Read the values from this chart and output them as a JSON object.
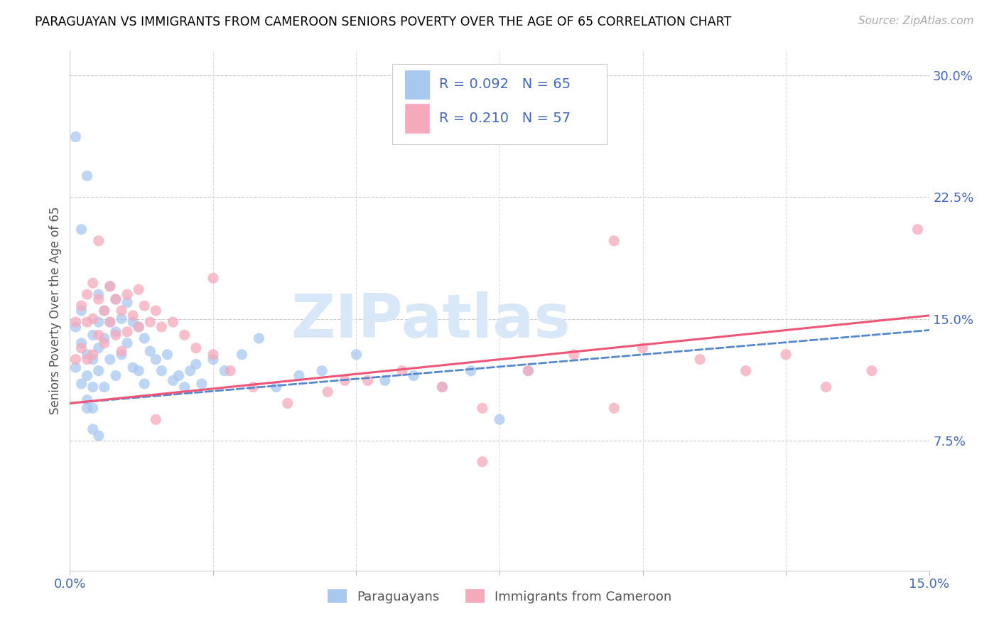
{
  "title": "PARAGUAYAN VS IMMIGRANTS FROM CAMEROON SENIORS POVERTY OVER THE AGE OF 65 CORRELATION CHART",
  "source": "Source: ZipAtlas.com",
  "ylabel": "Seniors Poverty Over the Age of 65",
  "right_yticks": [
    "30.0%",
    "22.5%",
    "15.0%",
    "7.5%"
  ],
  "right_ytick_vals": [
    0.3,
    0.225,
    0.15,
    0.075
  ],
  "xlim": [
    0.0,
    0.15
  ],
  "ylim": [
    -0.005,
    0.315
  ],
  "paraguayan_color": "#A8C8F0",
  "cameroon_color": "#F5AABB",
  "paraguayan_line_color": "#5588CC",
  "cameroon_line_color": "#EE5577",
  "watermark_color": "#D8E8F8",
  "watermark_text": "ZIPatlas",
  "legend_text1": "R = 0.092   N = 65",
  "legend_text2": "R = 0.210   N = 57",
  "par_line_start_y": 0.098,
  "par_line_end_y": 0.143,
  "cam_line_start_y": 0.098,
  "cam_line_end_y": 0.152,
  "par_x": [
    0.001,
    0.001,
    0.002,
    0.002,
    0.002,
    0.003,
    0.003,
    0.003,
    0.003,
    0.004,
    0.004,
    0.004,
    0.004,
    0.005,
    0.005,
    0.005,
    0.005,
    0.006,
    0.006,
    0.006,
    0.007,
    0.007,
    0.007,
    0.008,
    0.008,
    0.008,
    0.009,
    0.009,
    0.01,
    0.01,
    0.011,
    0.011,
    0.012,
    0.012,
    0.013,
    0.013,
    0.014,
    0.015,
    0.016,
    0.017,
    0.018,
    0.019,
    0.02,
    0.021,
    0.022,
    0.023,
    0.025,
    0.027,
    0.03,
    0.033,
    0.036,
    0.04,
    0.044,
    0.05,
    0.055,
    0.06,
    0.065,
    0.07,
    0.075,
    0.08,
    0.001,
    0.002,
    0.003,
    0.004,
    0.005
  ],
  "par_y": [
    0.145,
    0.12,
    0.135,
    0.11,
    0.155,
    0.128,
    0.115,
    0.1,
    0.095,
    0.14,
    0.125,
    0.108,
    0.095,
    0.165,
    0.148,
    0.132,
    0.118,
    0.155,
    0.138,
    0.108,
    0.17,
    0.148,
    0.125,
    0.162,
    0.142,
    0.115,
    0.15,
    0.128,
    0.16,
    0.135,
    0.148,
    0.12,
    0.145,
    0.118,
    0.138,
    0.11,
    0.13,
    0.125,
    0.118,
    0.128,
    0.112,
    0.115,
    0.108,
    0.118,
    0.122,
    0.11,
    0.125,
    0.118,
    0.128,
    0.138,
    0.108,
    0.115,
    0.118,
    0.128,
    0.112,
    0.115,
    0.108,
    0.118,
    0.088,
    0.118,
    0.262,
    0.205,
    0.238,
    0.082,
    0.078
  ],
  "cam_x": [
    0.001,
    0.001,
    0.002,
    0.002,
    0.003,
    0.003,
    0.003,
    0.004,
    0.004,
    0.004,
    0.005,
    0.005,
    0.006,
    0.006,
    0.007,
    0.007,
    0.008,
    0.008,
    0.009,
    0.009,
    0.01,
    0.01,
    0.011,
    0.012,
    0.012,
    0.013,
    0.014,
    0.015,
    0.016,
    0.018,
    0.02,
    0.022,
    0.025,
    0.028,
    0.032,
    0.038,
    0.045,
    0.052,
    0.058,
    0.065,
    0.072,
    0.08,
    0.088,
    0.095,
    0.1,
    0.11,
    0.118,
    0.125,
    0.132,
    0.14,
    0.005,
    0.015,
    0.025,
    0.048,
    0.072,
    0.095,
    0.148
  ],
  "cam_y": [
    0.148,
    0.125,
    0.158,
    0.132,
    0.165,
    0.148,
    0.125,
    0.172,
    0.15,
    0.128,
    0.162,
    0.14,
    0.155,
    0.135,
    0.17,
    0.148,
    0.162,
    0.14,
    0.155,
    0.13,
    0.165,
    0.142,
    0.152,
    0.168,
    0.145,
    0.158,
    0.148,
    0.155,
    0.145,
    0.148,
    0.14,
    0.132,
    0.128,
    0.118,
    0.108,
    0.098,
    0.105,
    0.112,
    0.118,
    0.108,
    0.095,
    0.118,
    0.128,
    0.095,
    0.132,
    0.125,
    0.118,
    0.128,
    0.108,
    0.118,
    0.198,
    0.088,
    0.175,
    0.112,
    0.062,
    0.198,
    0.205
  ]
}
